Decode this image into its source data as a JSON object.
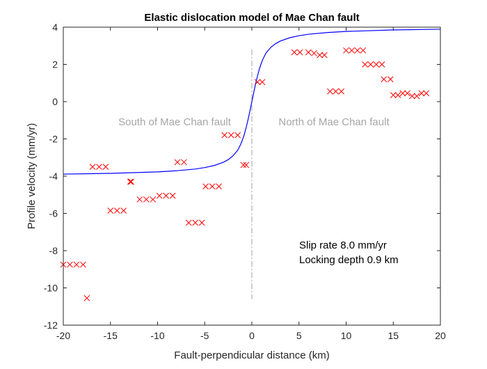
{
  "chart_data": {
    "type": "scatter",
    "title": "Elastic dislocation model of Mae Chan fault",
    "xlabel": "Fault-perpendicular distance (km)",
    "ylabel": "Profile velocity (mm/yr)",
    "xlim": [
      -20,
      20
    ],
    "ylim": [
      -12,
      4
    ],
    "xticks": [
      -20,
      -15,
      -10,
      -5,
      0,
      5,
      10,
      15,
      20
    ],
    "yticks": [
      -12,
      -10,
      -8,
      -6,
      -4,
      -2,
      0,
      2,
      4
    ],
    "grid": false,
    "legend": "none",
    "colors": {
      "points": "#ff0000",
      "model": "#0000ff",
      "fault_line": "#a0a0a0",
      "region_text": "#a6a6a6"
    },
    "observations": {
      "marker": "x",
      "x": [
        -20.0,
        -19.3,
        -18.6,
        -17.9,
        -17.5,
        -16.9,
        -16.2,
        -15.5,
        -15.0,
        -14.3,
        -13.6,
        -12.9,
        -12.8,
        -11.9,
        -11.2,
        -10.5,
        -9.8,
        -9.1,
        -8.4,
        -7.9,
        -7.2,
        -6.7,
        -6.0,
        -5.3,
        -4.9,
        -4.2,
        -3.5,
        -2.9,
        -2.2,
        -1.5,
        -0.9,
        -0.6,
        0.6,
        1.1,
        4.5,
        5.1,
        6.0,
        6.6,
        7.2,
        7.7,
        8.3,
        8.9,
        9.5,
        10.0,
        10.6,
        11.2,
        11.8,
        12.0,
        12.6,
        13.2,
        13.8,
        14.0,
        14.7,
        15.0,
        15.5,
        16.0,
        16.5,
        17.0,
        17.5,
        18.0,
        18.5
      ],
      "y": [
        -8.75,
        -8.75,
        -8.75,
        -8.75,
        -10.55,
        -3.5,
        -3.5,
        -3.5,
        -5.85,
        -5.85,
        -5.85,
        -4.3,
        -4.3,
        -5.25,
        -5.25,
        -5.25,
        -5.05,
        -5.05,
        -5.05,
        -3.25,
        -3.25,
        -6.5,
        -6.5,
        -6.5,
        -4.55,
        -4.55,
        -4.55,
        -1.8,
        -1.8,
        -1.8,
        -3.4,
        -3.4,
        1.05,
        1.05,
        2.65,
        2.65,
        2.65,
        2.6,
        2.5,
        2.5,
        0.55,
        0.55,
        0.55,
        2.75,
        2.75,
        2.75,
        2.75,
        2.0,
        2.0,
        2.0,
        2.0,
        1.2,
        1.2,
        0.35,
        0.35,
        0.45,
        0.45,
        0.3,
        0.3,
        0.45,
        0.45
      ]
    },
    "model": {
      "slip_rate": 8.0,
      "locking_depth": 0.9,
      "x_samples": [
        -20,
        -15,
        -10,
        -8,
        -6,
        -5,
        -4,
        -3,
        -2.5,
        -2,
        -1.5,
        -1.2,
        -1,
        -0.8,
        -0.6,
        -0.4,
        -0.2,
        0,
        0.2,
        0.4,
        0.6,
        0.8,
        1,
        1.2,
        1.5,
        2,
        2.5,
        3,
        4,
        5,
        6,
        8,
        10,
        15,
        20
      ],
      "y_samples": [
        -3.89,
        -3.85,
        -3.77,
        -3.71,
        -3.62,
        -3.54,
        -3.43,
        -3.25,
        -3.11,
        -2.91,
        -2.61,
        -2.31,
        -2.06,
        -1.76,
        -1.38,
        -0.96,
        -0.49,
        0.0,
        0.49,
        0.96,
        1.38,
        1.76,
        2.06,
        2.31,
        2.61,
        2.91,
        3.11,
        3.25,
        3.43,
        3.54,
        3.62,
        3.71,
        3.77,
        3.85,
        3.89
      ]
    },
    "fault_line": {
      "x": 0,
      "y_range": [
        -10.6,
        2.8
      ],
      "style": "dash-dot"
    },
    "region_labels": {
      "south": "South of Mae Chan fault",
      "north": "North of Mae Chan fault"
    },
    "annotations": {
      "slip": "Slip rate 8.0 mm/yr",
      "depth": "Locking depth 0.9 km"
    }
  }
}
